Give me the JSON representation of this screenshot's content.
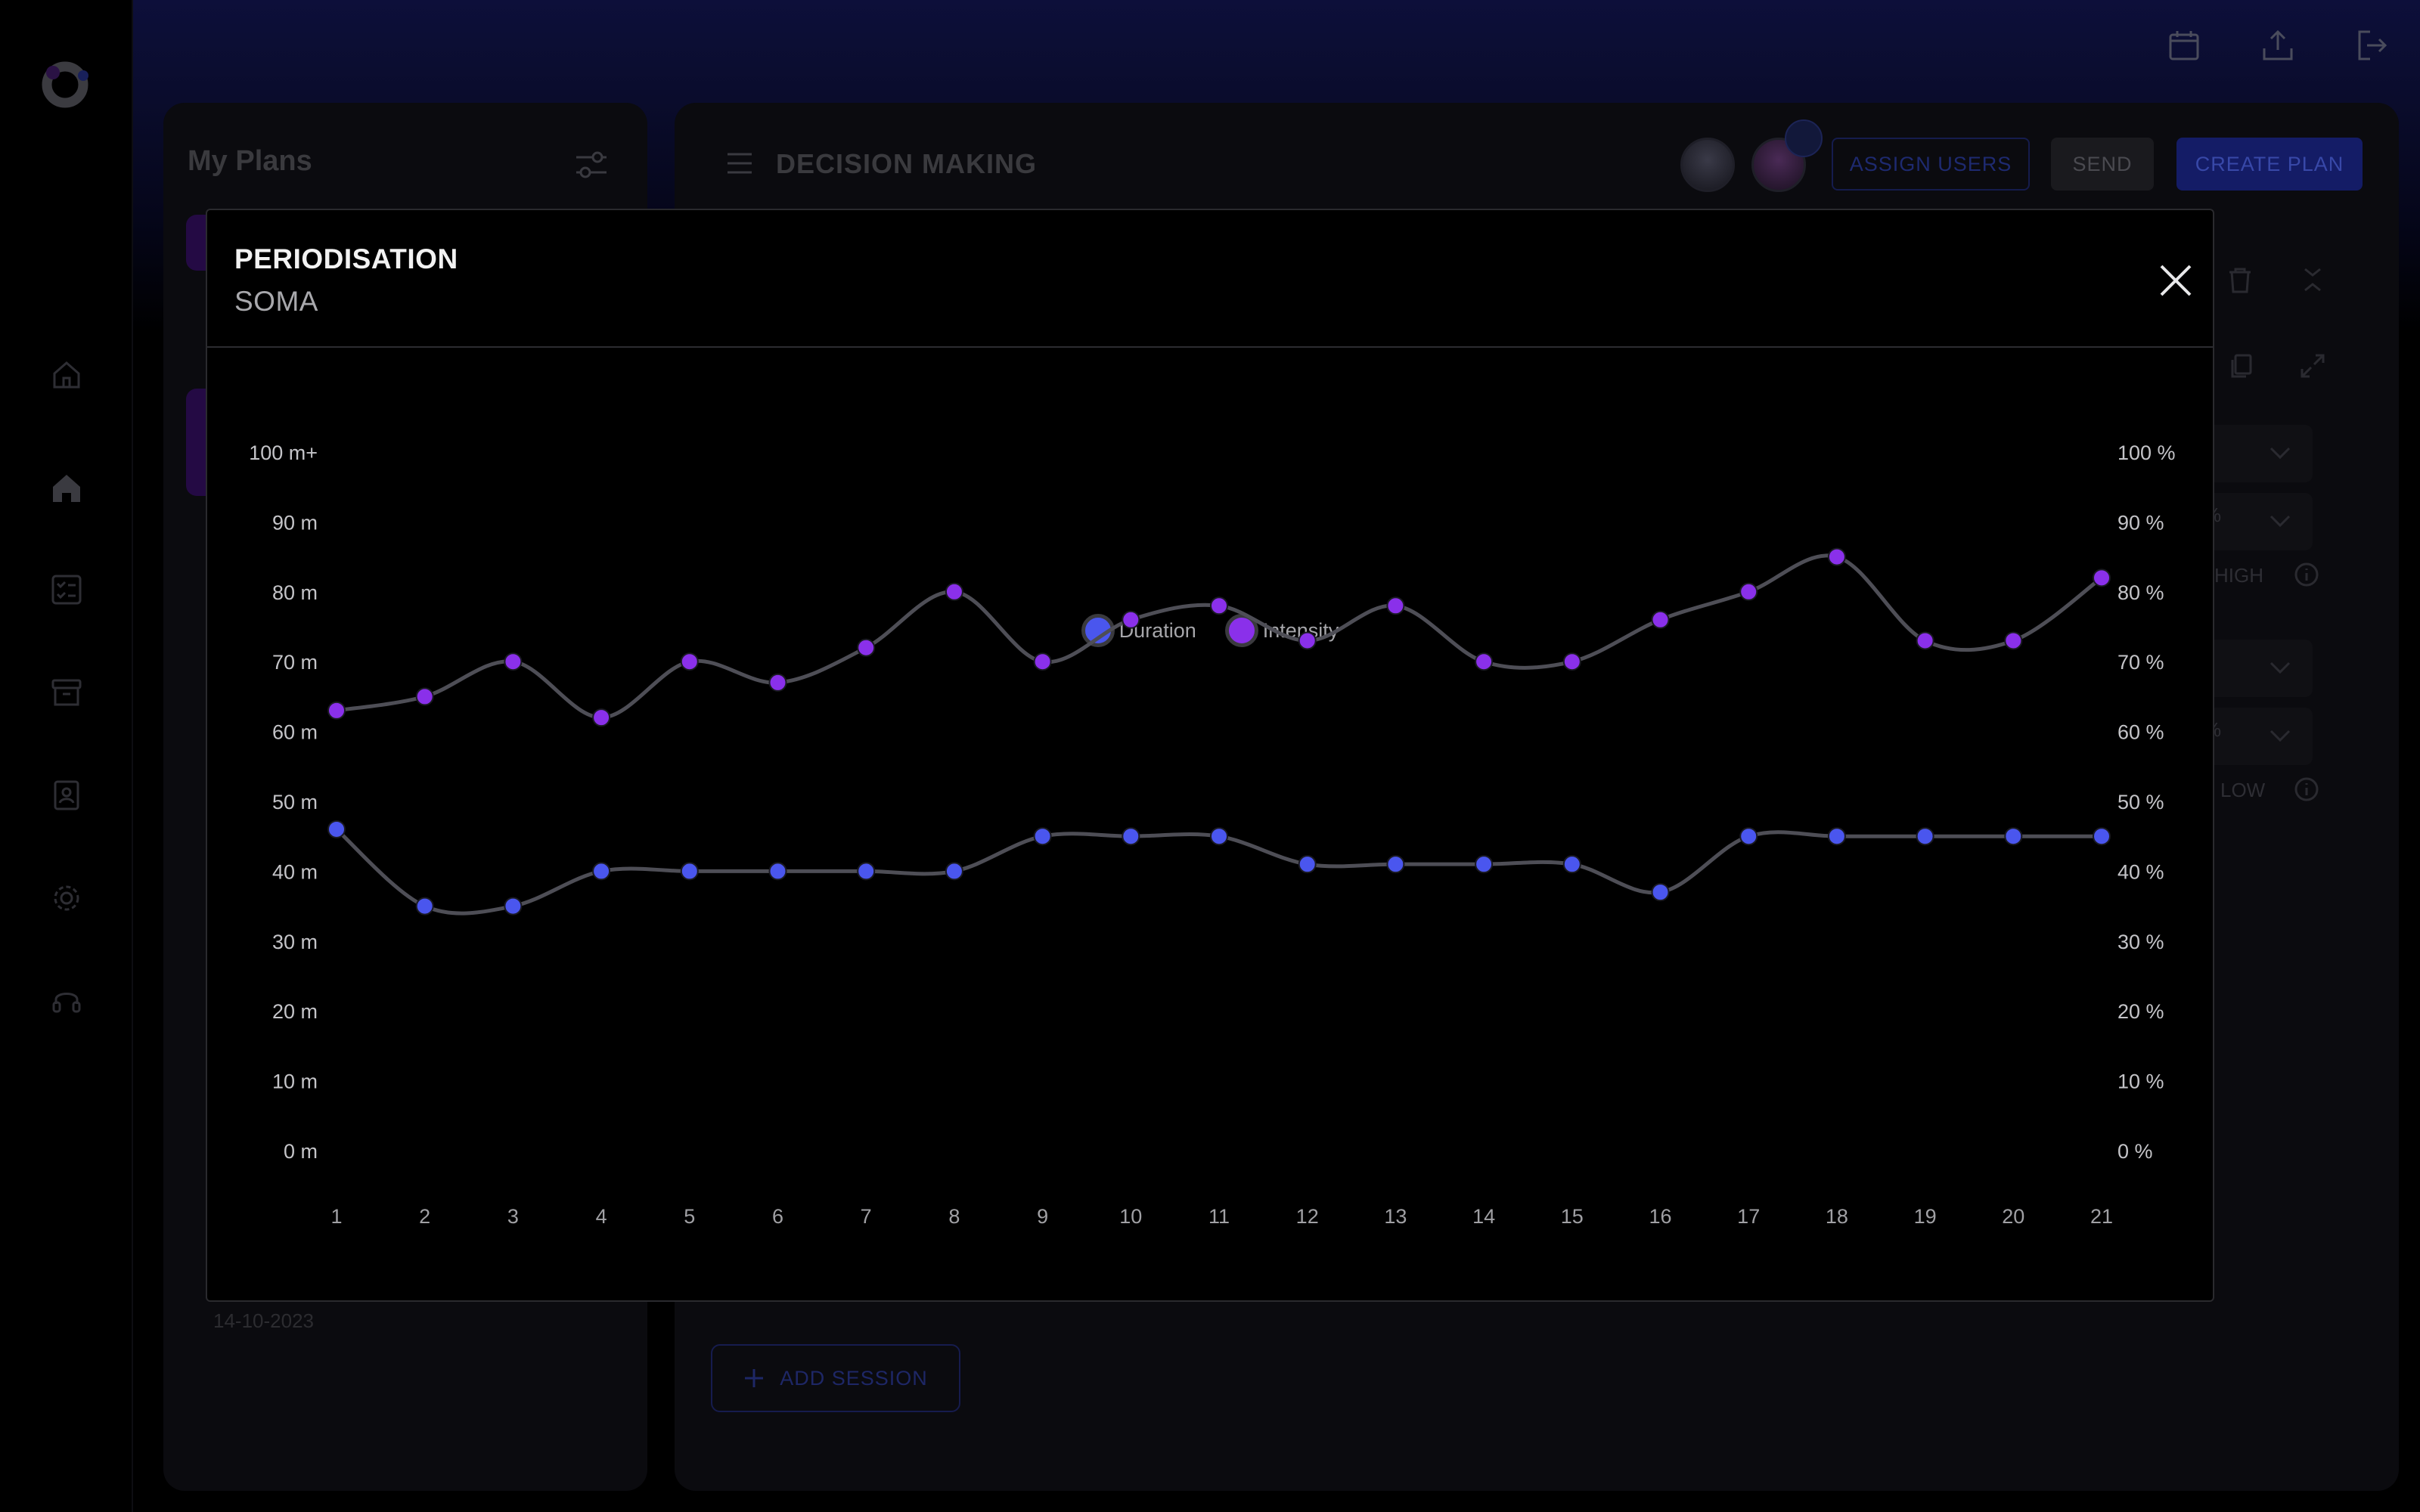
{
  "top_actions": {
    "icons": [
      "calendar-icon",
      "upload-icon",
      "logout-icon"
    ]
  },
  "sidebar": {
    "icons": [
      "home-outline-icon",
      "home-filled-icon",
      "checklist-icon",
      "archive-icon",
      "contact-icon",
      "gear-icon",
      "headset-icon"
    ]
  },
  "plans": {
    "title": "My Plans",
    "date": "14-10-2023"
  },
  "main": {
    "title": "DECISION MAKING",
    "buttons": {
      "assign": "ASSIGN USERS",
      "send": "SEND",
      "create": "CREATE PLAN"
    },
    "side_values": {
      "pct_1": "%",
      "pct_2": "%",
      "level_high": "HIGH",
      "level_low": "LOW"
    },
    "add_session": "ADD SESSION"
  },
  "modal": {
    "title": "PERIODISATION",
    "subtitle": "SOMA"
  },
  "colors": {
    "duration": "#4a56ee",
    "intensity": "#8a30ea",
    "line": "#4e4e56",
    "accent": "#141c66"
  },
  "chart_data": {
    "type": "line",
    "legend": [
      "Duration",
      "Intensity"
    ],
    "legend_position": "top-center",
    "x": [
      1,
      2,
      3,
      4,
      5,
      6,
      7,
      8,
      9,
      10,
      11,
      12,
      13,
      14,
      15,
      16,
      17,
      18,
      19,
      20,
      21
    ],
    "series": [
      {
        "name": "Duration",
        "axis": "left",
        "values": [
          46,
          35,
          35,
          40,
          40,
          40,
          40,
          40,
          45,
          45,
          45,
          41,
          41,
          41,
          41,
          37,
          45,
          45,
          45,
          45,
          45
        ]
      },
      {
        "name": "Intensity",
        "axis": "right",
        "values": [
          63,
          65,
          70,
          62,
          70,
          67,
          72,
          80,
          70,
          76,
          78,
          73,
          78,
          70,
          70,
          76,
          80,
          85,
          73,
          73,
          82
        ]
      }
    ],
    "y_left": {
      "ylim": [
        0,
        100
      ],
      "ticks": [
        "0 m",
        "10 m",
        "20 m",
        "30 m",
        "40 m",
        "50 m",
        "60 m",
        "70 m",
        "80 m",
        "90 m",
        "100 m+"
      ]
    },
    "y_right": {
      "ylim": [
        0,
        100
      ],
      "ticks": [
        "0 %",
        "10 %",
        "20 %",
        "30 %",
        "40 %",
        "50 %",
        "60 %",
        "70 %",
        "80 %",
        "90 %",
        "100 %"
      ]
    },
    "grid": false
  }
}
